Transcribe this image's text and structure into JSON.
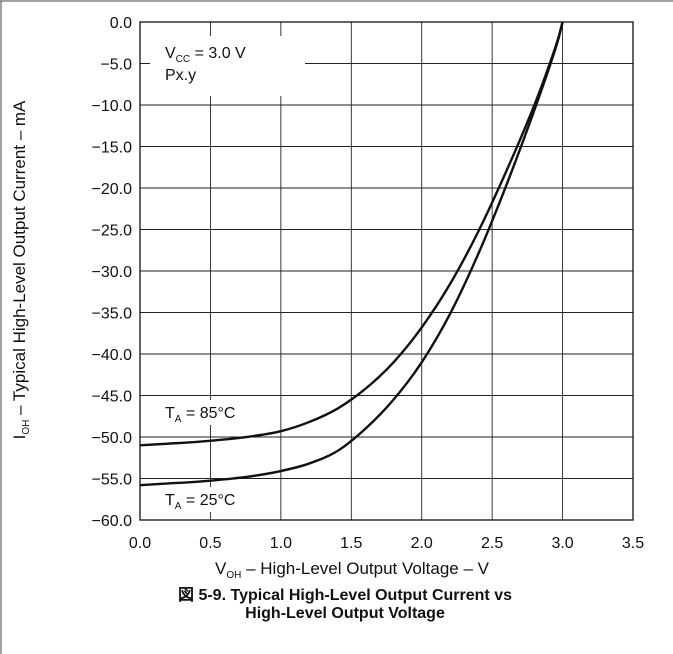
{
  "chart_data": {
    "type": "line",
    "xlabel": {
      "symbol": "V",
      "sub": "OH",
      "text": " – High-Level Output Voltage – V"
    },
    "ylabel": {
      "symbol": "I",
      "sub": "OH",
      "text": " – Typical High-Level Output Current – mA"
    },
    "xlim": [
      0,
      3.5
    ],
    "ylim": [
      -60,
      0
    ],
    "x_ticks": [
      0.0,
      0.5,
      1.0,
      1.5,
      2.0,
      2.5,
      3.0,
      3.5
    ],
    "x_tick_labels": [
      "0.0",
      "0.5",
      "1.0",
      "1.5",
      "2.0",
      "2.5",
      "3.0",
      "3.5"
    ],
    "y_ticks": [
      0,
      -5,
      -10,
      -15,
      -20,
      -25,
      -30,
      -35,
      -40,
      -45,
      -50,
      -55,
      -60
    ],
    "y_tick_labels": [
      "0.0",
      "−5.0",
      "−10.0",
      "−15.0",
      "−20.0",
      "−25.0",
      "−30.0",
      "−35.0",
      "−40.0",
      "−45.0",
      "−50.0",
      "−55.0",
      "−60.0"
    ],
    "grid": true,
    "conditions": {
      "vcc": {
        "symbol": "V",
        "sub": "CC",
        "text": " = 3.0 V"
      },
      "pin": "Px.y"
    },
    "series": [
      {
        "name": {
          "symbol": "T",
          "sub": "A",
          "text": " = 85°C"
        },
        "x": [
          0.0,
          0.2,
          0.4,
          0.6,
          0.8,
          1.0,
          1.2,
          1.4,
          1.6,
          1.8,
          2.0,
          2.2,
          2.4,
          2.6,
          2.8,
          2.95,
          3.0
        ],
        "y": [
          -51.0,
          -50.8,
          -50.6,
          -50.3,
          -49.9,
          -49.3,
          -48.2,
          -46.6,
          -44.2,
          -41.0,
          -36.8,
          -31.6,
          -25.3,
          -18.0,
          -10.0,
          -3.0,
          0.0
        ]
      },
      {
        "name": {
          "symbol": "T",
          "sub": "A",
          "text": " = 25°C"
        },
        "x": [
          0.0,
          0.2,
          0.4,
          0.6,
          0.8,
          1.0,
          1.2,
          1.4,
          1.6,
          1.8,
          2.0,
          2.2,
          2.4,
          2.6,
          2.8,
          2.95,
          3.0
        ],
        "y": [
          -55.8,
          -55.6,
          -55.4,
          -55.1,
          -54.7,
          -54.1,
          -53.2,
          -51.7,
          -49.0,
          -45.5,
          -41.0,
          -35.2,
          -28.0,
          -19.7,
          -10.6,
          -3.2,
          0.0
        ]
      }
    ],
    "caption": {
      "prefix": "図 5-9.",
      "line1": "Typical High-Level Output Current vs",
      "line2": "High-Level Output Voltage"
    }
  }
}
